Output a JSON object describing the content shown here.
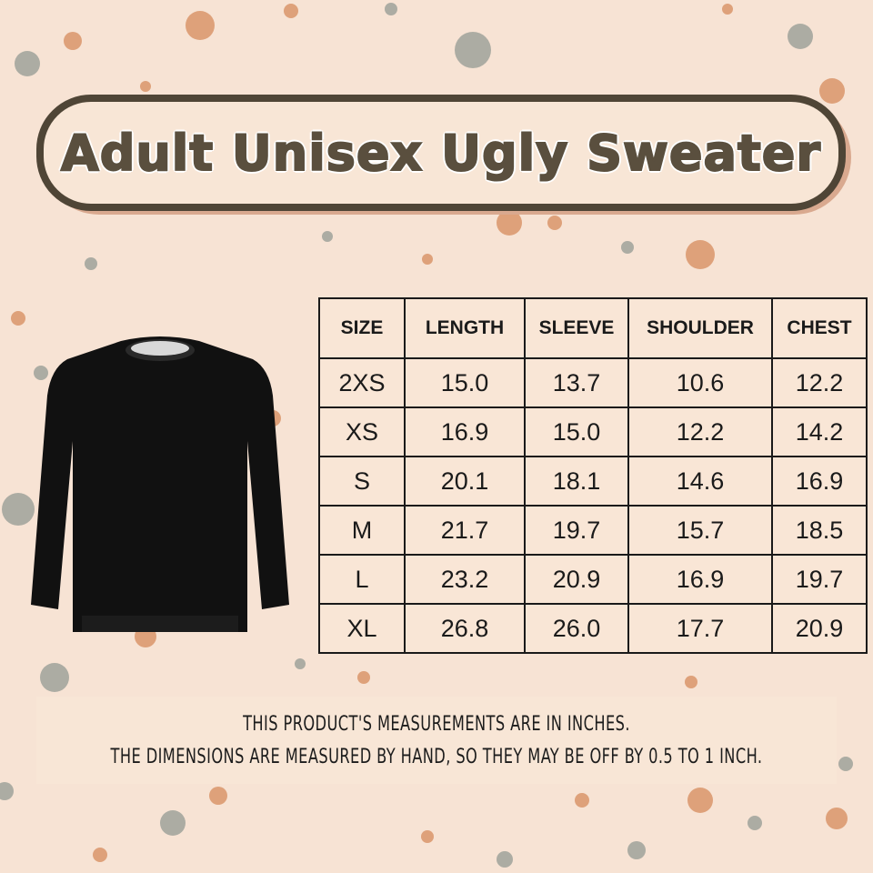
{
  "title": "Adult Unisex Ugly Sweater",
  "colors": {
    "background": "#f7e3d4",
    "banner_border": "#4f4536",
    "title_text": "#5a4f3e",
    "dot_orange": "#d9956a",
    "dot_gray": "#9fa29a",
    "sweater": "#111111"
  },
  "product_image": "black crew-neck sweater",
  "table": {
    "headers": [
      "SIZE",
      "LENGTH",
      "SLEEVE",
      "SHOULDER",
      "CHEST"
    ],
    "rows": [
      [
        "2XS",
        "15.0",
        "13.7",
        "10.6",
        "12.2"
      ],
      [
        "XS",
        "16.9",
        "15.0",
        "12.2",
        "14.2"
      ],
      [
        "S",
        "20.1",
        "18.1",
        "14.6",
        "16.9"
      ],
      [
        "M",
        "21.7",
        "19.7",
        "15.7",
        "18.5"
      ],
      [
        "L",
        "23.2",
        "20.9",
        "16.9",
        "19.7"
      ],
      [
        "XL",
        "26.8",
        "26.0",
        "17.7",
        "20.9"
      ]
    ]
  },
  "notes": [
    "THIS PRODUCT'S MEASUREMENTS ARE IN INCHES.",
    "THE DIMENSIONS ARE MEASURED BY HAND, SO THEY MAY BE OFF BY 0.5 TO 1 INCH."
  ]
}
